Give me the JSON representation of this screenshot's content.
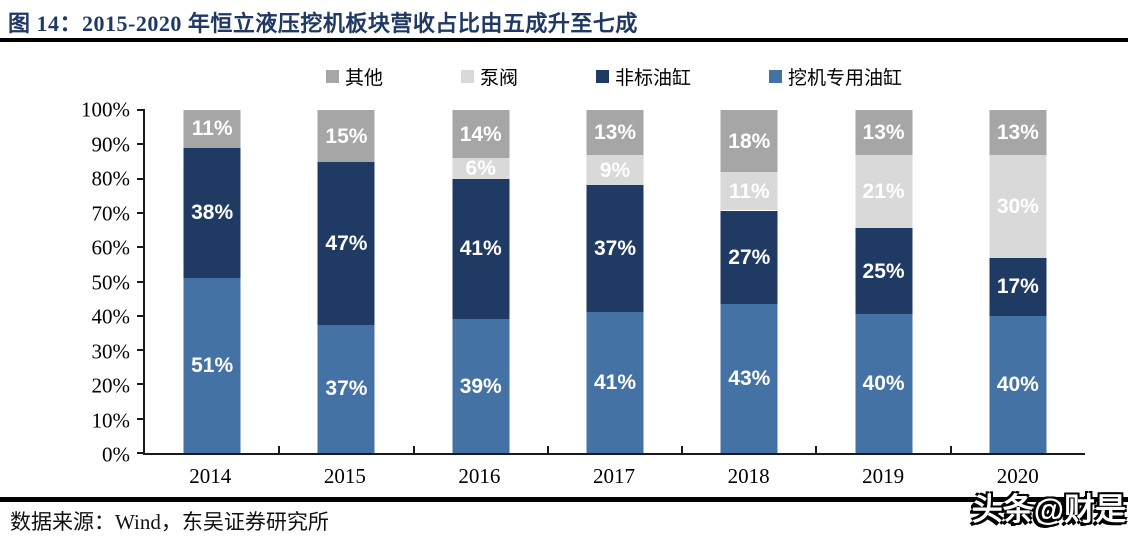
{
  "title": "图 14：2015-2020 年恒立液压挖机板块营收占比由五成升至七成",
  "source": "数据来源：Wind，东吴证券研究所",
  "watermark": "头条@财是",
  "colors": {
    "title_navy": "#1f3864",
    "excavator_blue": "#4472a4",
    "nonstandard_navy": "#1f3a63",
    "pump_light_gray": "#d9d9d9",
    "other_gray": "#a6a6a6",
    "axis": "#1a1a1a",
    "rule_black": "#000000"
  },
  "chart_data": {
    "type": "bar",
    "stacked": true,
    "title": "2015-2020 年恒立液压挖机板块营收占比由五成升至七成",
    "categories": [
      "2014",
      "2015",
      "2016",
      "2017",
      "2018",
      "2019",
      "2020"
    ],
    "series": [
      {
        "name": "挖机专用油缸",
        "color": "#4472a4",
        "values": [
          51,
          37,
          39,
          41,
          43,
          40,
          40
        ]
      },
      {
        "name": "非标油缸",
        "color": "#1f3a63",
        "values": [
          38,
          47,
          41,
          37,
          27,
          25,
          17
        ]
      },
      {
        "name": "泵阀",
        "color": "#d9d9d9",
        "values": [
          0,
          0,
          6,
          9,
          11,
          21,
          30
        ]
      },
      {
        "name": "其他",
        "color": "#a6a6a6",
        "values": [
          11,
          15,
          14,
          13,
          18,
          13,
          13
        ]
      }
    ],
    "legend_position": "top",
    "legend_order_note": "legend shows series in reverse stack order",
    "grid": false,
    "ylim": [
      0,
      100
    ],
    "y_tick_labels": [
      "0%",
      "10%",
      "20%",
      "30%",
      "40%",
      "50%",
      "60%",
      "70%",
      "80%",
      "90%",
      "100%"
    ],
    "data_label_format": "{value}%"
  }
}
